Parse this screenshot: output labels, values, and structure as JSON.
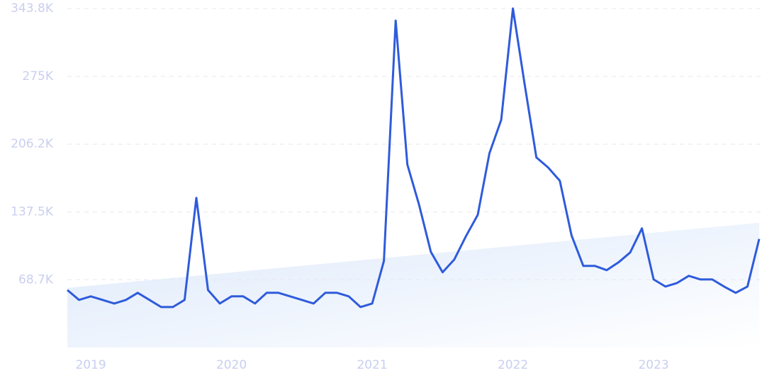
{
  "chart_data": {
    "type": "line",
    "color": "#2f5bdb",
    "categories": [
      null,
      null,
      "2019",
      null,
      null,
      null,
      null,
      null,
      null,
      null,
      null,
      null,
      null,
      null,
      "2020",
      null,
      null,
      null,
      null,
      null,
      null,
      null,
      null,
      null,
      null,
      null,
      "2021",
      null,
      null,
      null,
      null,
      null,
      null,
      null,
      null,
      null,
      null,
      null,
      "2022",
      null,
      null,
      null,
      null,
      null,
      null,
      null,
      null,
      null,
      null,
      null,
      "2023",
      null,
      null,
      null,
      null,
      null,
      null,
      null,
      null,
      null
    ],
    "values": [
      58200,
      48200,
      51800,
      48200,
      44600,
      48200,
      55400,
      48200,
      41000,
      41000,
      48200,
      151700,
      58200,
      44600,
      51800,
      51800,
      44600,
      55400,
      55400,
      51800,
      48200,
      44600,
      55400,
      55400,
      51800,
      41000,
      44600,
      87700,
      331500,
      185500,
      144500,
      97000,
      76200,
      89200,
      112900,
      134500,
      197000,
      230800,
      343800,
      266700,
      192700,
      182600,
      169000,
      113600,
      82700,
      82700,
      78400,
      86300,
      96300,
      120800,
      69000,
      61800,
      65400,
      72600,
      69000,
      69000,
      61800,
      55400,
      61800,
      110000
    ],
    "trend": [
      60400,
      126500
    ],
    "ylim": [
      0,
      343800
    ],
    "yticks": [
      {
        "value": 68700,
        "label": "68.7K"
      },
      {
        "value": 137500,
        "label": "137.5K"
      },
      {
        "value": 206200,
        "label": "206.2K"
      },
      {
        "value": 275000,
        "label": "275K"
      },
      {
        "value": 343800,
        "label": "343.8K"
      }
    ],
    "grid": true
  }
}
